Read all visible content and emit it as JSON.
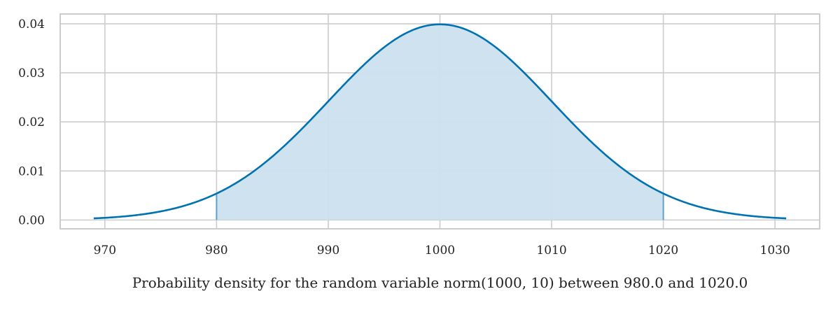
{
  "chart_data": {
    "type": "area",
    "title": "",
    "xlabel": "Probability density for the random variable norm(1000, 10) between 980.0 and 1020.0",
    "ylabel": "",
    "distribution": {
      "name": "norm",
      "mean": 1000,
      "sd": 10
    },
    "curve_range": [
      969,
      1031
    ],
    "shaded_range": [
      980.0,
      1020.0
    ],
    "xlim": [
      966,
      1034
    ],
    "ylim": [
      -0.0018,
      0.042
    ],
    "x_ticks": [
      970,
      980,
      990,
      1000,
      1010,
      1020,
      1030
    ],
    "y_ticks": [
      0.0,
      0.01,
      0.02,
      0.03,
      0.04
    ],
    "x_tick_labels": [
      "970",
      "980",
      "990",
      "1000",
      "1010",
      "1020",
      "1030"
    ],
    "y_tick_labels": [
      "0.00",
      "0.01",
      "0.02",
      "0.03",
      "0.04"
    ],
    "grid": true,
    "colors": {
      "line": "#0072b2",
      "fill": "#cce0ee",
      "grid": "#cccccc",
      "frame": "#cccccc",
      "text": "#222222"
    }
  }
}
